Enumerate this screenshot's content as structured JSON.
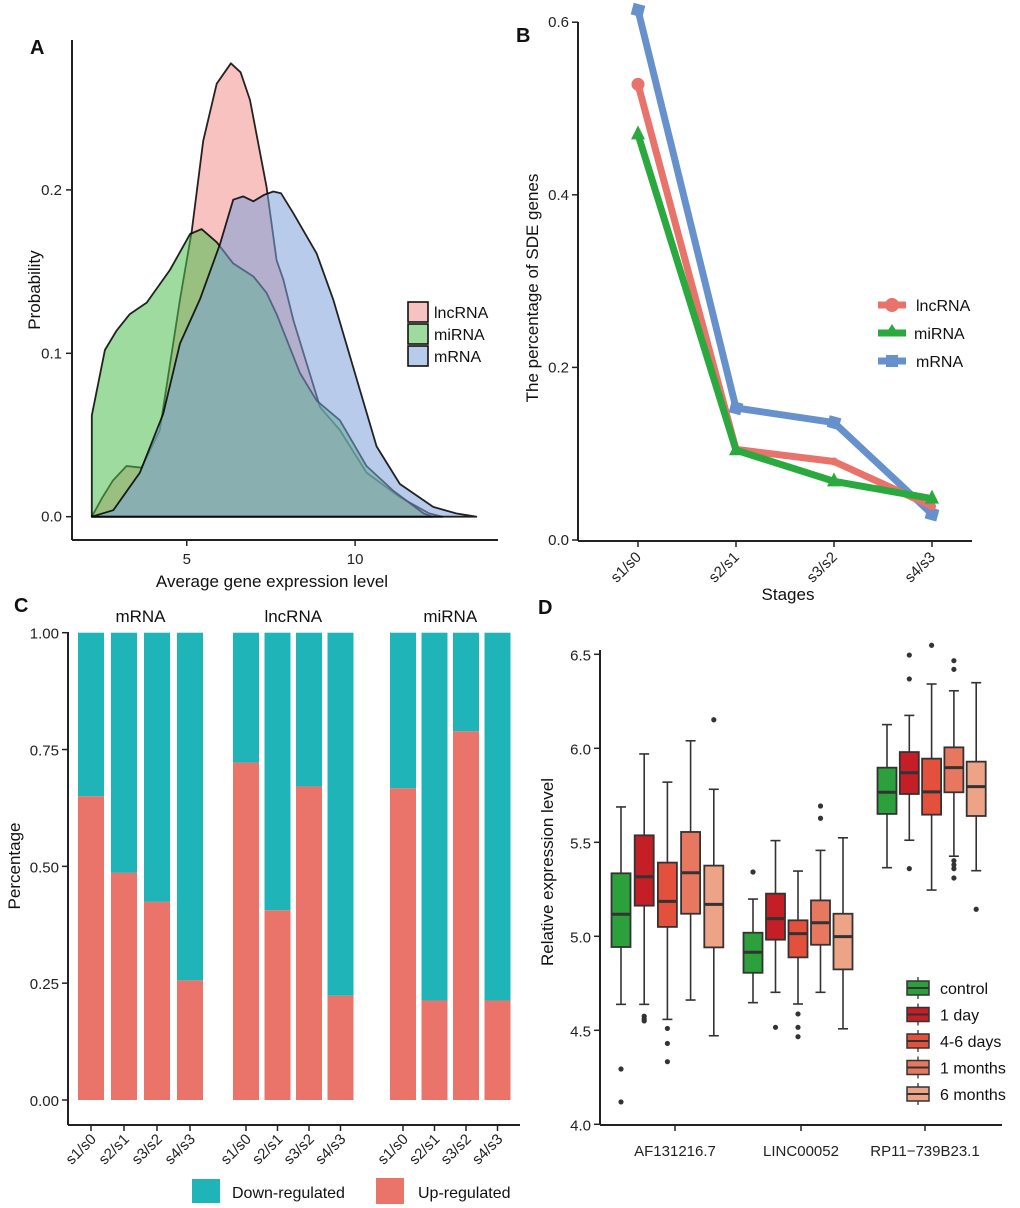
{
  "chart_data": [
    {
      "panel": "A",
      "type": "area",
      "subtype": "density",
      "title": "",
      "xlabel": "Average gene expression level",
      "ylabel": "Probability",
      "xlim": [
        2.2,
        13.6
      ],
      "ylim": [
        0.0,
        0.29
      ],
      "xticks": [
        5,
        10
      ],
      "yticks": [
        0.0,
        0.1,
        0.2
      ],
      "ytick_labels": [
        "0.0",
        "0.1",
        "0.2"
      ],
      "legend": {
        "placement": "right",
        "entries": [
          "lncRNA",
          "miRNA",
          "mRNA"
        ]
      },
      "series": [
        {
          "name": "lncRNA",
          "color": "#f08f8a",
          "points": [
            [
              2.18,
              0.0
            ],
            [
              2.5,
              0.012
            ],
            [
              2.8,
              0.022
            ],
            [
              3.21,
              0.031
            ],
            [
              3.66,
              0.03
            ],
            [
              4.2,
              0.053
            ],
            [
              4.8,
              0.133
            ],
            [
              5.15,
              0.175
            ],
            [
              5.49,
              0.23
            ],
            [
              5.89,
              0.265
            ],
            [
              6.31,
              0.2775
            ],
            [
              6.6,
              0.272
            ],
            [
              6.88,
              0.255
            ],
            [
              7.37,
              0.202
            ],
            [
              7.67,
              0.157
            ],
            [
              7.87,
              0.145
            ],
            [
              8.17,
              0.12
            ],
            [
              8.96,
              0.067
            ],
            [
              9.55,
              0.053
            ],
            [
              10.34,
              0.027
            ],
            [
              11.33,
              0.012
            ],
            [
              12.2,
              0.002
            ],
            [
              12.6,
              0.0
            ]
          ]
        },
        {
          "name": "miRNA",
          "color": "#4cc04f",
          "points": [
            [
              2.18,
              0.0
            ],
            [
              2.18,
              0.062
            ],
            [
              2.57,
              0.102
            ],
            [
              2.92,
              0.114
            ],
            [
              3.31,
              0.124
            ],
            [
              3.81,
              0.131
            ],
            [
              4.5,
              0.151
            ],
            [
              5.1,
              0.173
            ],
            [
              5.44,
              0.176
            ],
            [
              5.89,
              0.168
            ],
            [
              6.38,
              0.155
            ],
            [
              6.98,
              0.147
            ],
            [
              7.37,
              0.137
            ],
            [
              7.67,
              0.124
            ],
            [
              8.36,
              0.088
            ],
            [
              8.86,
              0.071
            ],
            [
              9.55,
              0.059
            ],
            [
              10.34,
              0.031
            ],
            [
              11.13,
              0.016
            ],
            [
              12.03,
              0.002
            ],
            [
              12.3,
              0.0
            ]
          ]
        },
        {
          "name": "mRNA",
          "color": "#7ea1d8",
          "points": [
            [
              2.18,
              0.0
            ],
            [
              2.82,
              0.004
            ],
            [
              3.61,
              0.027
            ],
            [
              4.3,
              0.063
            ],
            [
              4.8,
              0.106
            ],
            [
              5.39,
              0.133
            ],
            [
              5.99,
              0.167
            ],
            [
              6.38,
              0.194
            ],
            [
              6.68,
              0.196
            ],
            [
              6.98,
              0.193
            ],
            [
              7.3,
              0.197
            ],
            [
              7.57,
              0.199
            ],
            [
              7.8,
              0.198
            ],
            [
              8.16,
              0.186
            ],
            [
              8.86,
              0.161
            ],
            [
              9.35,
              0.133
            ],
            [
              10.05,
              0.084
            ],
            [
              10.64,
              0.043
            ],
            [
              11.33,
              0.02
            ],
            [
              12.32,
              0.006
            ],
            [
              13.0,
              0.002
            ],
            [
              13.6,
              0.0
            ]
          ]
        }
      ]
    },
    {
      "panel": "B",
      "type": "line",
      "title": "",
      "xlabel": "Stages",
      "ylabel": "The percentage of SDE genes",
      "categories": [
        "s1/s0",
        "s2/s1",
        "s3/s2",
        "s4/s3"
      ],
      "ylim": [
        0.0,
        0.62
      ],
      "yticks": [
        0.0,
        0.2,
        0.4,
        0.6
      ],
      "ytick_labels": [
        "0.0",
        "0.2",
        "0.4",
        "0.6"
      ],
      "legend": {
        "placement": "right",
        "entries": [
          "lncRNA",
          "miRNA",
          "mRNA"
        ]
      },
      "series": [
        {
          "name": "lncRNA",
          "color": "#e8736b",
          "marker": "circle",
          "values": [
            0.528,
            0.105,
            0.091,
            0.039
          ]
        },
        {
          "name": "miRNA",
          "color": "#2aa93f",
          "marker": "triangle",
          "values": [
            0.47,
            0.104,
            0.068,
            0.048
          ]
        },
        {
          "name": "mRNA",
          "color": "#6691cc",
          "marker": "square",
          "values": [
            0.614,
            0.153,
            0.136,
            0.03
          ]
        }
      ]
    },
    {
      "panel": "C",
      "type": "bar",
      "subtype": "stacked-percent-faceted",
      "title": "",
      "xlabel": "",
      "ylabel": "Percentage",
      "ylim": [
        0.0,
        1.0
      ],
      "yticks": [
        0.0,
        0.25,
        0.5,
        0.75,
        1.0
      ],
      "ytick_labels": [
        "0.00",
        "0.25",
        "0.50",
        "0.75",
        "1.00"
      ],
      "categories": [
        "s1/s0",
        "s2/s1",
        "s3/s2",
        "s4/s3"
      ],
      "legend": {
        "placement": "bottom",
        "entries": [
          "Down-regulated",
          "Up-regulated"
        ]
      },
      "colors": {
        "Down-regulated": "#1fb5b8",
        "Up-regulated": "#ea736a"
      },
      "facets": [
        {
          "name": "mRNA",
          "up": [
            0.65,
            0.486,
            0.424,
            0.256
          ]
        },
        {
          "name": "lncRNA",
          "up": [
            0.722,
            0.406,
            0.671,
            0.223
          ]
        },
        {
          "name": "miRNA",
          "up": [
            0.667,
            0.213,
            0.789,
            0.213
          ]
        }
      ]
    },
    {
      "panel": "D",
      "type": "box",
      "title": "",
      "xlabel": "",
      "ylabel": "Relative  expression level",
      "ylim": [
        4.0,
        6.6
      ],
      "yticks": [
        4.0,
        4.5,
        5.0,
        5.5,
        6.0,
        6.5
      ],
      "ytick_labels": [
        "4.0",
        "4.5",
        "5.0",
        "5.5",
        "6.0",
        "6.5"
      ],
      "categories": [
        "AF131216.7",
        "LINC00052",
        "RP11−739B23.1"
      ],
      "legend": {
        "placement": "bottom-right",
        "entries": [
          "control",
          "1 day",
          "4-6 days",
          "1 months",
          "6 months"
        ]
      },
      "groups": [
        {
          "name": "control",
          "color": "#2ca03c"
        },
        {
          "name": "1 day",
          "color": "#c41e26"
        },
        {
          "name": "4-6 days",
          "color": "#e3503b"
        },
        {
          "name": "1 months",
          "color": "#e8775f"
        },
        {
          "name": "6 months",
          "color": "#eda386"
        }
      ],
      "boxes": [
        [
          {
            "wlo": 4.638,
            "q1": 4.943,
            "med": 5.117,
            "q3": 5.335,
            "whi": 5.688,
            "out": [
              4.294,
              4.119
            ]
          },
          {
            "wlo": 4.638,
            "q1": 5.163,
            "med": 5.317,
            "q3": 5.537,
            "whi": 5.97,
            "out": [
              4.575,
              4.56,
              4.55
            ]
          },
          {
            "wlo": 4.558,
            "q1": 5.05,
            "med": 5.186,
            "q3": 5.392,
            "whi": 5.82,
            "out": [
              4.51,
              4.43,
              4.333
            ]
          },
          {
            "wlo": 4.661,
            "q1": 5.12,
            "med": 5.338,
            "q3": 5.555,
            "whi": 6.04,
            "out": []
          },
          {
            "wlo": 4.471,
            "q1": 4.941,
            "med": 5.17,
            "q3": 5.376,
            "whi": 5.782,
            "out": [
              6.152
            ]
          }
        ],
        [
          {
            "wlo": 4.647,
            "q1": 4.806,
            "med": 4.915,
            "q3": 5.019,
            "whi": 5.198,
            "out": [
              5.342
            ]
          },
          {
            "wlo": 4.702,
            "q1": 4.982,
            "med": 5.094,
            "q3": 5.227,
            "whi": 5.509,
            "out": [
              4.516
            ]
          },
          {
            "wlo": 4.64,
            "q1": 4.888,
            "med": 5.014,
            "q3": 5.085,
            "whi": 5.347,
            "out": [
              4.587,
              4.516,
              4.466
            ]
          },
          {
            "wlo": 4.702,
            "q1": 4.955,
            "med": 5.072,
            "q3": 5.191,
            "whi": 5.457,
            "out": [
              5.693,
              5.628
            ]
          },
          {
            "wlo": 4.508,
            "q1": 4.824,
            "med": 4.998,
            "q3": 5.12,
            "whi": 5.524,
            "out": []
          }
        ],
        [
          {
            "wlo": 5.365,
            "q1": 5.651,
            "med": 5.766,
            "q3": 5.897,
            "whi": 6.126,
            "out": []
          },
          {
            "wlo": 5.511,
            "q1": 5.757,
            "med": 5.87,
            "q3": 5.98,
            "whi": 6.175,
            "out": [
              6.496,
              6.369,
              5.36
            ]
          },
          {
            "wlo": 5.246,
            "q1": 5.647,
            "med": 5.768,
            "q3": 5.945,
            "whi": 6.342,
            "out": [
              6.548
            ]
          },
          {
            "wlo": 5.426,
            "q1": 5.766,
            "med": 5.897,
            "q3": 6.005,
            "whi": 6.306,
            "out": [
              6.466,
              6.42,
              5.402,
              5.38,
              5.36,
              5.31
            ]
          },
          {
            "wlo": 5.349,
            "q1": 5.64,
            "med": 5.796,
            "q3": 5.929,
            "whi": 6.349,
            "out": [
              5.144
            ]
          }
        ]
      ]
    }
  ],
  "panel_labels": [
    "A",
    "B",
    "C",
    "D"
  ]
}
